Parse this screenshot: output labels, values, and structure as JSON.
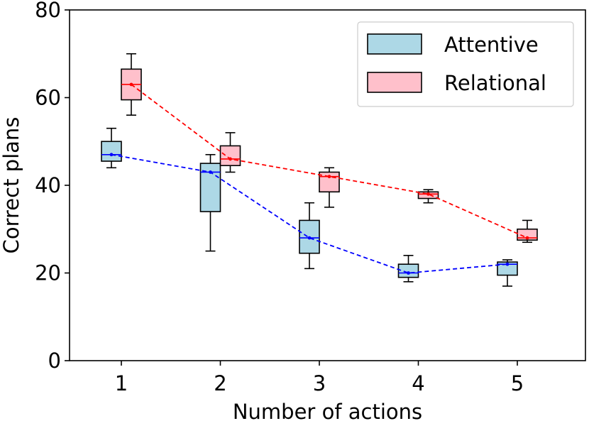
{
  "chart_data": {
    "type": "box",
    "xlabel": "Number of actions",
    "ylabel": "Correct plans",
    "x_ticks": [
      "1",
      "2",
      "3",
      "4",
      "5"
    ],
    "y_ticks": [
      "0",
      "20",
      "40",
      "60",
      "80"
    ],
    "ylim": [
      0,
      80
    ],
    "grid": false,
    "legend_position": "top-right",
    "series": [
      {
        "name": "Attentive",
        "box_color": "#add8e6",
        "line_color": "#0000ff",
        "boxes": [
          {
            "x": 1,
            "whislo": 44,
            "q1": 45.5,
            "med": 47,
            "q3": 50,
            "whishi": 53,
            "mean": 47
          },
          {
            "x": 2,
            "whislo": 25,
            "q1": 34,
            "med": 43,
            "q3": 45,
            "whishi": 47,
            "mean": 43
          },
          {
            "x": 3,
            "whislo": 21,
            "q1": 24.5,
            "med": 28,
            "q3": 32,
            "whishi": 36,
            "mean": 28
          },
          {
            "x": 4,
            "whislo": 18,
            "q1": 19,
            "med": 20,
            "q3": 22,
            "whishi": 24,
            "mean": 20
          },
          {
            "x": 5,
            "whislo": 17,
            "q1": 19.5,
            "med": 22,
            "q3": 22.5,
            "whishi": 23,
            "mean": 22
          }
        ]
      },
      {
        "name": "Relational",
        "box_color": "#ffc0cb",
        "line_color": "#ff0000",
        "boxes": [
          {
            "x": 1,
            "whislo": 56,
            "q1": 59.5,
            "med": 63,
            "q3": 66.5,
            "whishi": 70,
            "mean": 63
          },
          {
            "x": 2,
            "whislo": 43,
            "q1": 44.5,
            "med": 46,
            "q3": 49,
            "whishi": 52,
            "mean": 46
          },
          {
            "x": 3,
            "whislo": 35,
            "q1": 38.5,
            "med": 42,
            "q3": 43,
            "whishi": 44,
            "mean": 42
          },
          {
            "x": 4,
            "whislo": 36,
            "q1": 37,
            "med": 38,
            "q3": 38.5,
            "whishi": 39,
            "mean": 38
          },
          {
            "x": 5,
            "whislo": 27,
            "q1": 27.5,
            "med": 28,
            "q3": 30,
            "whishi": 32,
            "mean": 28
          }
        ]
      }
    ]
  }
}
